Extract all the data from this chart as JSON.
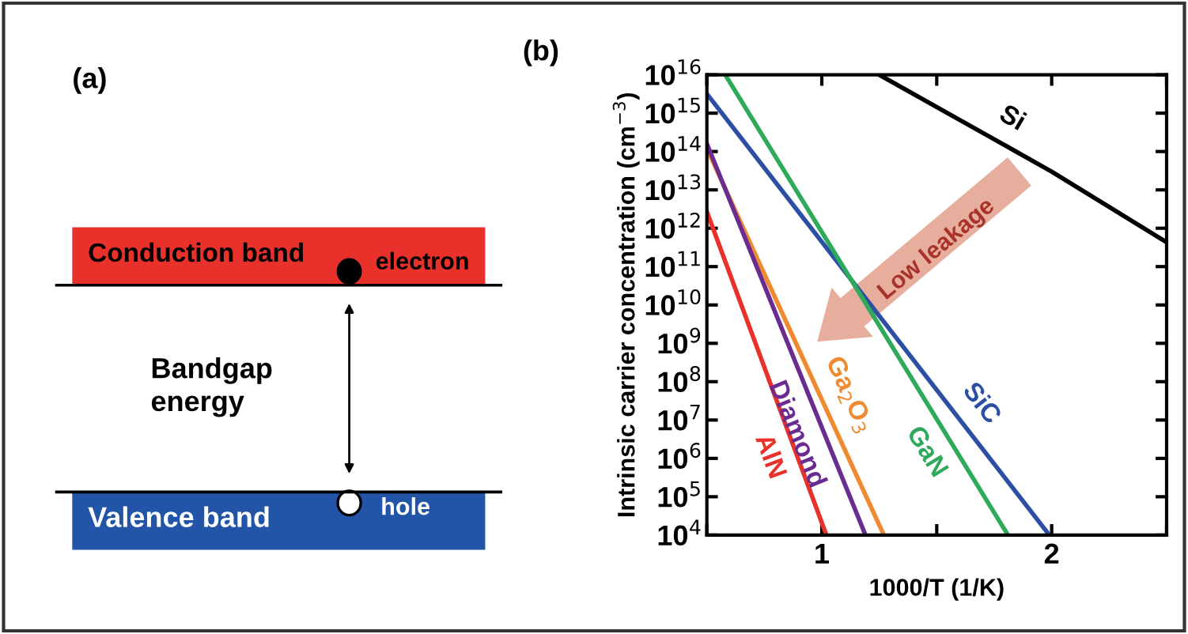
{
  "chart_data": [
    {
      "type": "other",
      "title": "(a)",
      "annotations": [
        "Conduction band",
        "electron",
        "Bandgap\nenergy",
        "Valence band",
        "hole"
      ]
    },
    {
      "type": "line",
      "title": "(b)",
      "xlabel": "1000/T (1/K)",
      "ylabel": "Intrinsic carrier concentration (cm$^{−3}$)",
      "log": "y",
      "xlim": [
        0.5,
        2.5
      ],
      "xticks": [
        {
          "value": 0.5,
          "label": null
        },
        1,
        {
          "value": 1.5,
          "label": null
        },
        2,
        {
          "value": 2.5,
          "label": null
        }
      ],
      "ylim": [
        10000.0,
        1e+16
      ],
      "yticks": [
        {
          "value": 10000.0,
          "label": "10$^{4}$"
        },
        {
          "value": 100000.0,
          "label": "10$^{5}$"
        },
        {
          "value": 1000000.0,
          "label": "10$^{6}$"
        },
        {
          "value": 10000000.0,
          "label": "10$^{7}$"
        },
        {
          "value": 100000000.0,
          "label": "10$^{8}$"
        },
        {
          "value": 1000000000.0,
          "label": "10$^{9}$"
        },
        {
          "value": 10000000000.0,
          "label": "10$^{10}$"
        },
        {
          "value": 100000000000.0,
          "label": "10$^{11}$"
        },
        {
          "value": 1000000000000.0,
          "label": "10$^{12}$"
        },
        {
          "value": 10000000000000.0,
          "label": "10$^{13}$"
        },
        {
          "value": 100000000000000.0,
          "label": "10$^{14}$"
        },
        {
          "value": 1000000000000000.0,
          "label": "10$^{15}$"
        },
        {
          "value": 1e+16,
          "label": "10$^{16}$"
        }
      ],
      "grid": false,
      "marker": "none",
      "line_style": "solid",
      "series": [
        {
          "name": "Si",
          "color": "#000000",
          "x": [
            1.25,
            2.0,
            2.5
          ],
          "values": [
            1e+16,
            30000000000000.0,
            430000000000.0
          ]
        },
        {
          "name": "SiC",
          "color": "#2a4fa3",
          "x": [
            0.5,
            1.99
          ],
          "values": [
            3200000000000000.0,
            10000.0
          ]
        },
        {
          "name": "GaN",
          "color": "#2eaa5a",
          "x": [
            0.58,
            1.81
          ],
          "values": [
            1e+16,
            10000.0
          ]
        },
        {
          "name": "Ga$_{2}$O$_{3}$",
          "color": "#f08a30",
          "x": [
            0.5,
            1.27
          ],
          "values": [
            120000000000000.0,
            10000.0
          ]
        },
        {
          "name": "Diamond",
          "color": "#6a2c91",
          "x": [
            0.5,
            1.19
          ],
          "values": [
            160000000000000.0,
            10000.0
          ]
        },
        {
          "name": "AlN",
          "color": "#e8312a",
          "x": [
            0.5,
            1.02
          ],
          "values": [
            2700000000000.0,
            10000.0
          ]
        }
      ],
      "annotations": [
        "Low leakage"
      ]
    }
  ]
}
